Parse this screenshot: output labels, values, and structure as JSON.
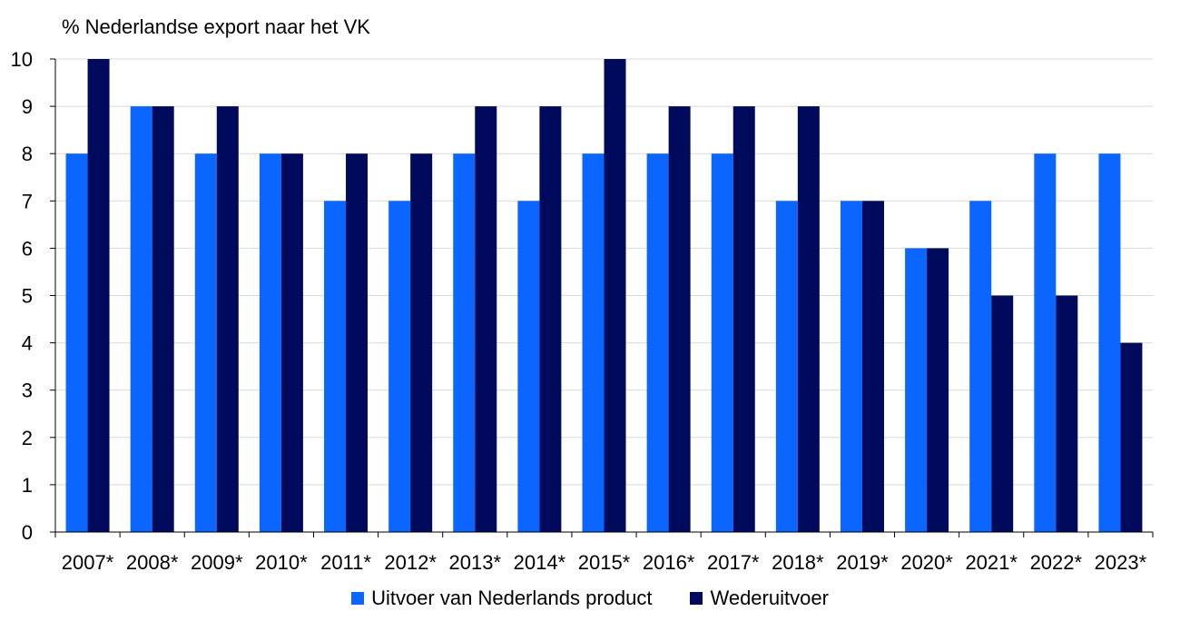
{
  "chart_data": {
    "type": "bar",
    "ylabel": "% Nederlandse export naar het VK",
    "ylim": [
      0,
      10
    ],
    "yticks": [
      0,
      1,
      2,
      3,
      4,
      5,
      6,
      7,
      8,
      9,
      10
    ],
    "grid": true,
    "legend_position": "bottom",
    "categories": [
      "2007*",
      "2008*",
      "2009*",
      "2010*",
      "2011*",
      "2012*",
      "2013*",
      "2014*",
      "2015*",
      "2016*",
      "2017*",
      "2018*",
      "2019*",
      "2020*",
      "2021*",
      "2022*",
      "2023*"
    ],
    "series": [
      {
        "name": "Uitvoer van Nederlands product",
        "color": "#0b66ff",
        "values": [
          8,
          9,
          8,
          8,
          7,
          7,
          8,
          7,
          8,
          8,
          8,
          7,
          7,
          6,
          7,
          8,
          8
        ]
      },
      {
        "name": "Wederuitvoer",
        "color": "#000a5c",
        "values": [
          10,
          9,
          9,
          8,
          8,
          8,
          9,
          9,
          10,
          9,
          9,
          9,
          7,
          6,
          5,
          5,
          4
        ]
      }
    ]
  }
}
